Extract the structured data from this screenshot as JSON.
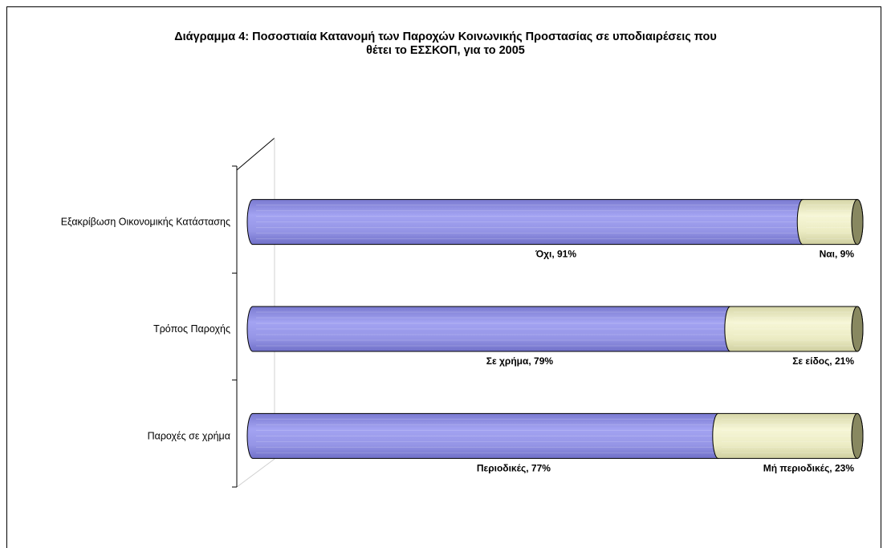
{
  "chart_data": {
    "type": "bar",
    "orientation": "horizontal",
    "stacked": "100%",
    "title_lines": [
      "Διάγραμμα 4: Ποσοστιαία Κατανομή των Παροχών Κοινωνικής Προστασίας σε υποδιαιρέσεις που",
      "θέτει το ΕΣΣΚΟΠ, για το 2005"
    ],
    "categories": [
      "Εξακρίβωση Οικονομικής Κατάστασης",
      "Τρόπος Παροχής",
      "Παροχές σε χρήμα"
    ],
    "series": [
      {
        "labels": [
          "Όχι",
          "Σε χρήμα",
          "Περιοδικές"
        ],
        "values": [
          91,
          79,
          77
        ],
        "data_labels": [
          "Όχι, 91%",
          "Σε χρήμα, 79%",
          "Περιοδικές, 77%"
        ],
        "color": "#9999ee"
      },
      {
        "labels": [
          "Ναι",
          "Σε είδος",
          "Μή περιοδικές"
        ],
        "values": [
          9,
          21,
          23
        ],
        "data_labels": [
          "Ναι, 9%",
          "Σε είδος, 21%",
          "Μή περιοδικές, 23%"
        ],
        "color": "#eeeec4"
      }
    ],
    "xlim": [
      0,
      100
    ],
    "grid": false,
    "legend": "none",
    "style": "3d-cylinder"
  }
}
